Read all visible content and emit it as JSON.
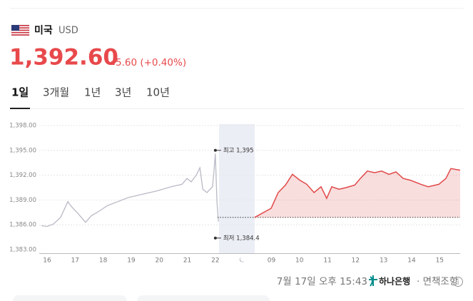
{
  "header": {
    "country": "미국",
    "currency": "USD",
    "price": "1,392.60",
    "change": "5.60 (+0.40%)"
  },
  "tabs": [
    "1일",
    "3개월",
    "1년",
    "3년",
    "10년"
  ],
  "chart_data": {
    "type": "line",
    "categories": [
      "16",
      "17",
      "18",
      "19",
      "20",
      "21",
      "22",
      null,
      "09",
      "10",
      "11",
      "12",
      "13",
      "14",
      "15"
    ],
    "xlim": [
      -0.28,
      14.73
    ],
    "ylim": [
      1383,
      1398
    ],
    "yticks": [
      {
        "value": 1398,
        "label": "1,398.00"
      },
      {
        "value": 1395,
        "label": "1,395.00"
      },
      {
        "value": 1392,
        "label": "1,392.00"
      },
      {
        "value": 1389,
        "label": "1,389.00"
      },
      {
        "value": 1386,
        "label": "1,386.00"
      },
      {
        "value": 1383,
        "label": "1,383.00"
      }
    ],
    "grid": true,
    "baseline": 1386.9,
    "series": [
      {
        "color": "#b9bac6",
        "x": [
          -0.2,
          0,
          0.23,
          0.48,
          0.74,
          0.87,
          1.12,
          1.37,
          1.58,
          1.88,
          2.14,
          2.52,
          2.9,
          3.41,
          3.92,
          4.43,
          4.81,
          4.99,
          5.14,
          5.32,
          5.45,
          5.55,
          5.7,
          5.9,
          5.95,
          6.0,
          6.06,
          6.11
        ],
        "values": [
          1385.9,
          1385.8,
          1386.1,
          1386.9,
          1388.8,
          1388.2,
          1387.3,
          1386.3,
          1387.1,
          1387.7,
          1388.3,
          1388.8,
          1389.3,
          1389.7,
          1390.1,
          1390.6,
          1390.9,
          1391.6,
          1391.2,
          1392.0,
          1392.9,
          1390.3,
          1389.9,
          1390.6,
          1392.5,
          1394.6,
          1388.6,
          1386.4
        ]
      },
      {
        "color": "#e04848",
        "x": [
          7.4,
          7.99,
          8.24,
          8.5,
          8.75,
          9.01,
          9.26,
          9.52,
          9.77,
          9.97,
          10.15,
          10.41,
          10.66,
          10.97,
          11.17,
          11.42,
          11.68,
          11.93,
          12.19,
          12.44,
          12.7,
          12.95,
          13.33,
          13.59,
          13.97,
          14.22,
          14.4,
          14.73
        ],
        "values": [
          1386.9,
          1388.0,
          1389.9,
          1390.8,
          1392.1,
          1391.4,
          1390.9,
          1389.9,
          1390.6,
          1389.2,
          1390.6,
          1390.3,
          1390.5,
          1390.8,
          1391.6,
          1392.5,
          1392.3,
          1392.5,
          1392.1,
          1392.4,
          1391.6,
          1391.4,
          1390.9,
          1390.6,
          1390.9,
          1391.6,
          1392.8,
          1392.6
        ]
      }
    ],
    "annotations": [
      {
        "text": "최고 1,395",
        "x": 6.0,
        "value": 1395
      },
      {
        "text": "최저 1,384.4",
        "x": 6.0,
        "value": 1384.4
      }
    ]
  },
  "footer": {
    "timestamp": "7월 17일 오후 15:43",
    "bank": "하나은행",
    "disclaimer": "· 면책조항"
  }
}
